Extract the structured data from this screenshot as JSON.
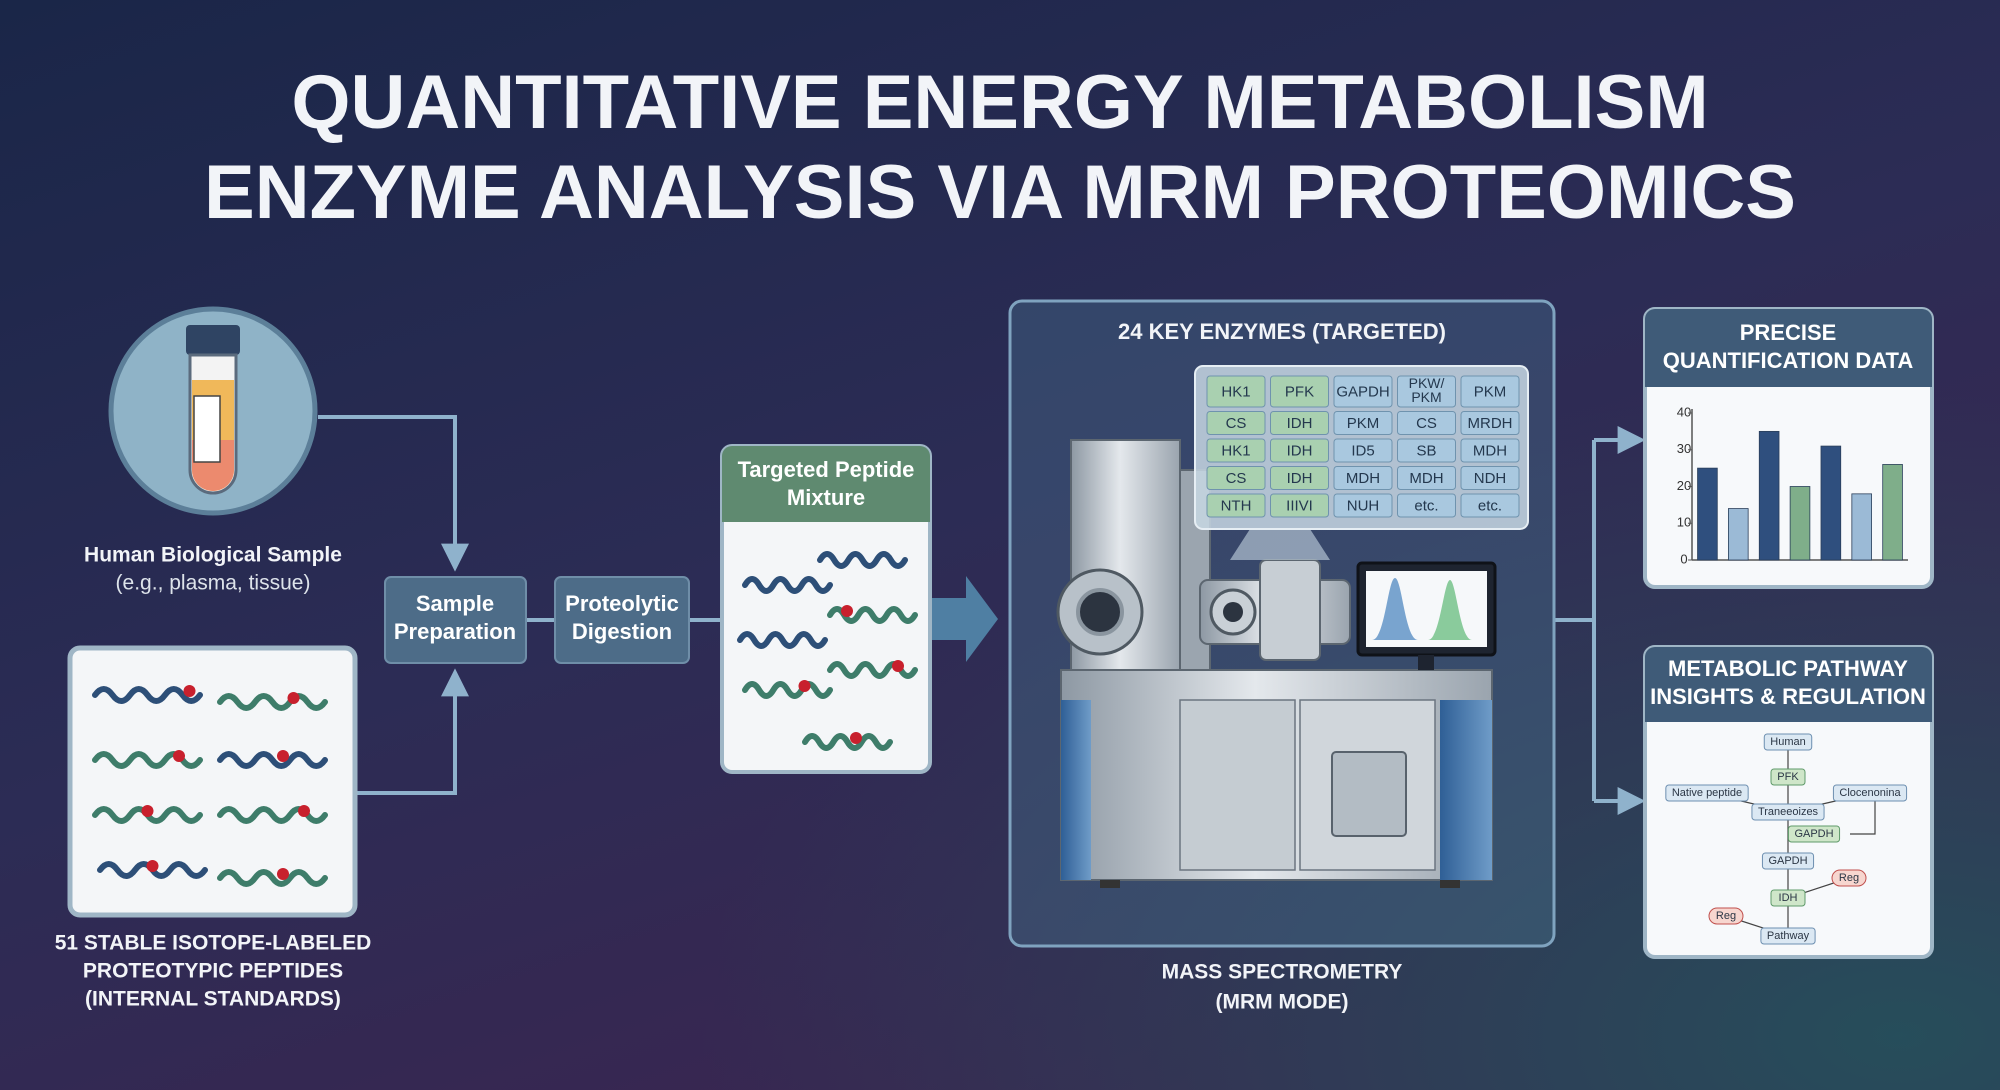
{
  "title": [
    "QUANTITATIVE ENERGY METABOLISM",
    "ENZYME ANALYSIS VIA MRM PROTEOMICS"
  ],
  "sample": {
    "label": "Human Biological Sample",
    "note": "(e.g., plasma, tissue)"
  },
  "standards": {
    "label": [
      "51 STABLE ISOTOPE-LABELED",
      "PROTEOTYPIC PEPTIDES",
      "(INTERNAL STANDARDS)"
    ]
  },
  "steps": [
    [
      "Sample",
      "Preparation"
    ],
    [
      "Proteolytic",
      "Digestion"
    ]
  ],
  "mixture": {
    "title": [
      "Targeted Peptide",
      "Mixture"
    ]
  },
  "ms": {
    "title": "24 KEY ENZYMES (TARGETED)",
    "enzymes": [
      [
        "HK1",
        "PFK",
        "GAPDH",
        [
          "PKW/",
          "PKM"
        ],
        "PKM"
      ],
      [
        "CS",
        "IDH",
        "PKM",
        "CS",
        "MRDH"
      ],
      [
        "HK1",
        "IDH",
        "ID5",
        "SB",
        "MDH"
      ],
      [
        "CS",
        "IDH",
        "MDH",
        "MDH",
        "NDH"
      ],
      [
        "NTH",
        "IIIVI",
        "NUH",
        "etc.",
        "etc."
      ]
    ],
    "caption": [
      "MASS SPECTROMETRY",
      "(MRM MODE)"
    ]
  },
  "quant": {
    "title": [
      "PRECISE",
      "QUANTIFICATION DATA"
    ],
    "chart": {
      "type": "bar",
      "values": [
        25,
        14,
        35,
        20,
        31,
        18,
        26
      ],
      "colors": [
        "#2f4f7e",
        "#9bbad6",
        "#2f4f7e",
        "#7fae8a",
        "#2f4f7e",
        "#9bbad6",
        "#7fae8a"
      ],
      "ylim": [
        0,
        40
      ],
      "yticks": [
        0,
        10,
        20,
        30,
        40
      ]
    }
  },
  "pathway": {
    "title": [
      "METABOLIC PATHWAY",
      "INSIGHTS & REGULATION"
    ],
    "nodes": [
      "Human",
      "PFK",
      "Native peptide",
      "Clocenonina",
      "Traneeoizes",
      "GAPDH",
      "GAPDH",
      "Reg",
      "IDH",
      "Reg",
      "Pathway"
    ]
  }
}
